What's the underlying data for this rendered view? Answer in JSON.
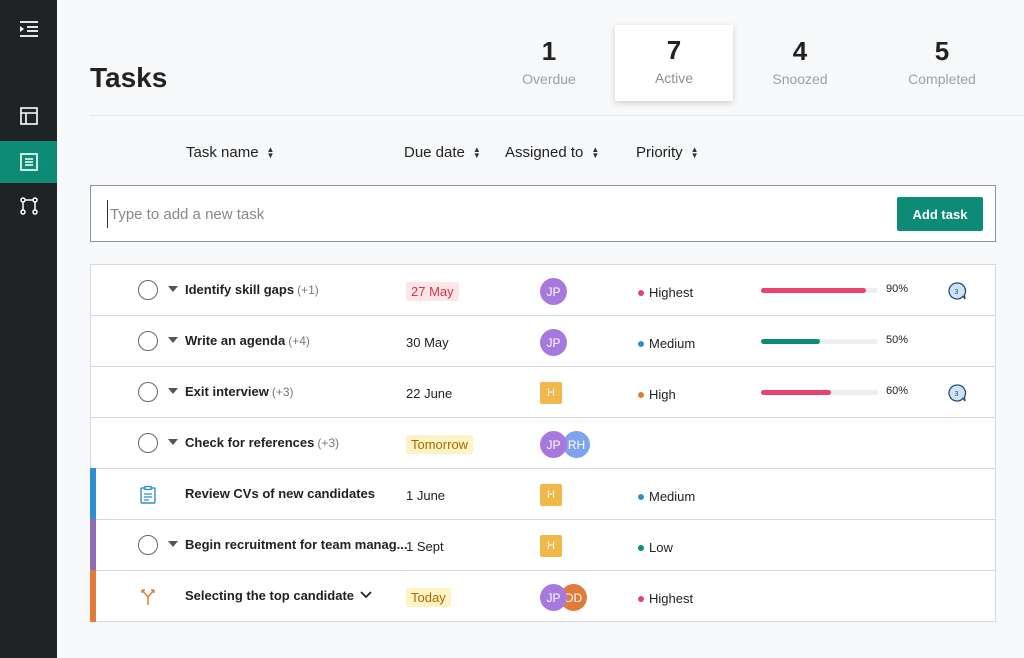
{
  "sidebar": {
    "items": [
      {
        "icon": "collapse-menu-icon"
      },
      {
        "icon": "layout-icon"
      },
      {
        "icon": "task-list-icon",
        "active": true
      },
      {
        "icon": "workflow-icon"
      }
    ]
  },
  "page_title": "Tasks",
  "stats": [
    {
      "value": "1",
      "label": "Overdue"
    },
    {
      "value": "7",
      "label": "Active",
      "active": true
    },
    {
      "value": "4",
      "label": "Snoozed"
    },
    {
      "value": "5",
      "label": "Completed"
    }
  ],
  "columns": {
    "task_name": "Task name",
    "due_date": "Due date",
    "assigned_to": "Assigned to",
    "priority": "Priority"
  },
  "add_task": {
    "placeholder": "Type to add a new task",
    "button_label": "Add task"
  },
  "colors": {
    "brand": "#0c8c77",
    "highest": "#e8436f",
    "high": "#e07b39",
    "medium": "#2d8fd0",
    "low": "#0c8c77"
  },
  "tasks": [
    {
      "name": "Identify skill gaps",
      "extra": "(+1)",
      "due": "27 May",
      "due_style": "red",
      "assignees": [
        "JP"
      ],
      "priority": "Highest",
      "progress": 0.9,
      "progress_label": "90%",
      "comment_count": "3"
    },
    {
      "name": "Write an agenda",
      "extra": "(+4)",
      "due": "30 May",
      "due_style": "plain",
      "assignees": [
        "JP"
      ],
      "priority": "Medium",
      "progress": 0.5,
      "progress_label": "50%"
    },
    {
      "name": "Exit interview",
      "extra": "(+3)",
      "due": "22 June",
      "due_style": "plain",
      "assignees": [
        "H"
      ],
      "priority": "High",
      "progress": 0.6,
      "progress_label": "60%",
      "comment_count": "3"
    },
    {
      "name": "Check for references",
      "extra": "(+3)",
      "due": "Tomorrow",
      "due_style": "yellow",
      "assignees": [
        "JP",
        "RH"
      ],
      "priority": ""
    },
    {
      "name": "Review CVs of new candidates",
      "extra": "",
      "due": "1 June",
      "due_style": "plain",
      "assignees": [
        "H"
      ],
      "priority": "Medium"
    },
    {
      "name": "Begin recruitment for team manag...",
      "extra": "",
      "due": "1 Sept",
      "due_style": "plain",
      "assignees": [
        "H"
      ],
      "priority": "Low"
    },
    {
      "name": "Selecting the top candidate",
      "extra": "",
      "due": "Today",
      "due_style": "yellow",
      "assignees": [
        "JP",
        "DD"
      ],
      "priority": "Highest"
    }
  ]
}
